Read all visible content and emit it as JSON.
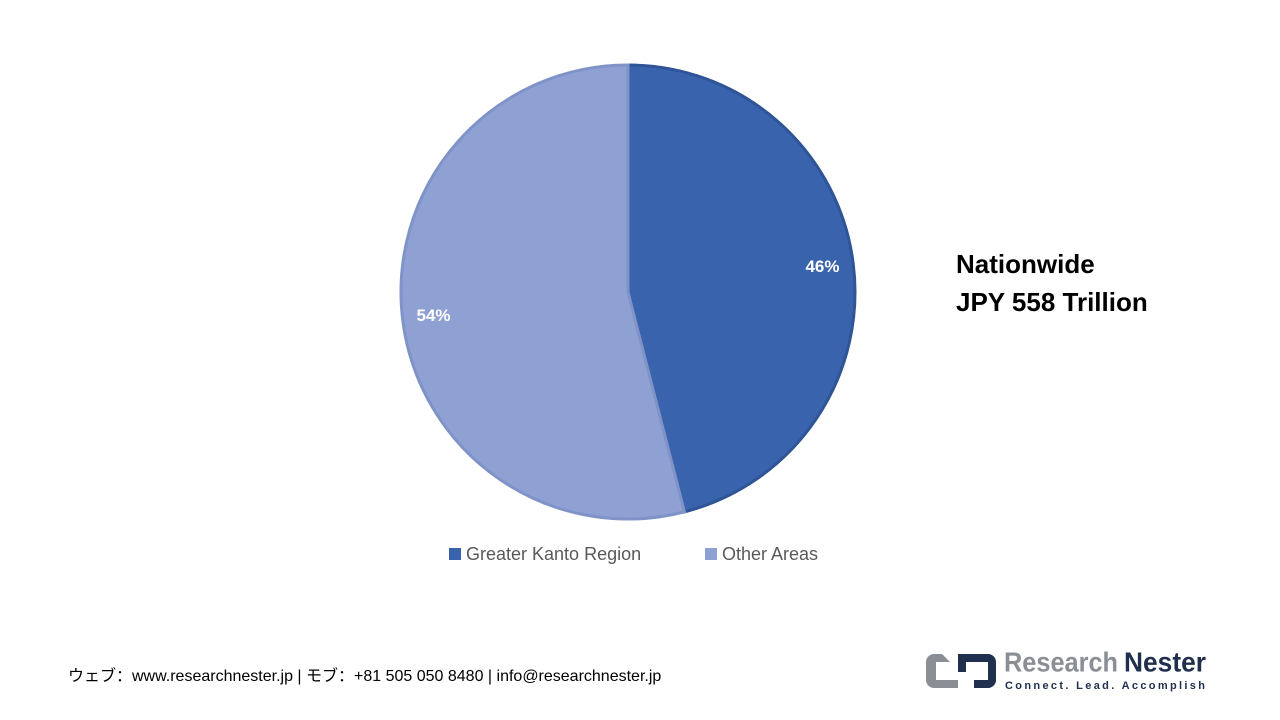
{
  "chart_data": {
    "type": "pie",
    "categories": [
      "Greater Kanto Region",
      "Other Areas"
    ],
    "values": [
      46,
      54
    ],
    "value_labels": [
      "46%",
      "54%"
    ],
    "colors": [
      "#3a63ad",
      "#8fa1d3"
    ],
    "annotations": [
      "Nationwide",
      "JPY 558 Trillion"
    ]
  },
  "footer": {
    "contact": "ウェブ：www.researchnester.jp | モブ：+81 505 050 8480 | info@researchnester.jp"
  },
  "logo": {
    "name_part_1": "Research",
    "name_part_2": "Nester",
    "tagline": "Connect. Lead. Accomplish"
  }
}
